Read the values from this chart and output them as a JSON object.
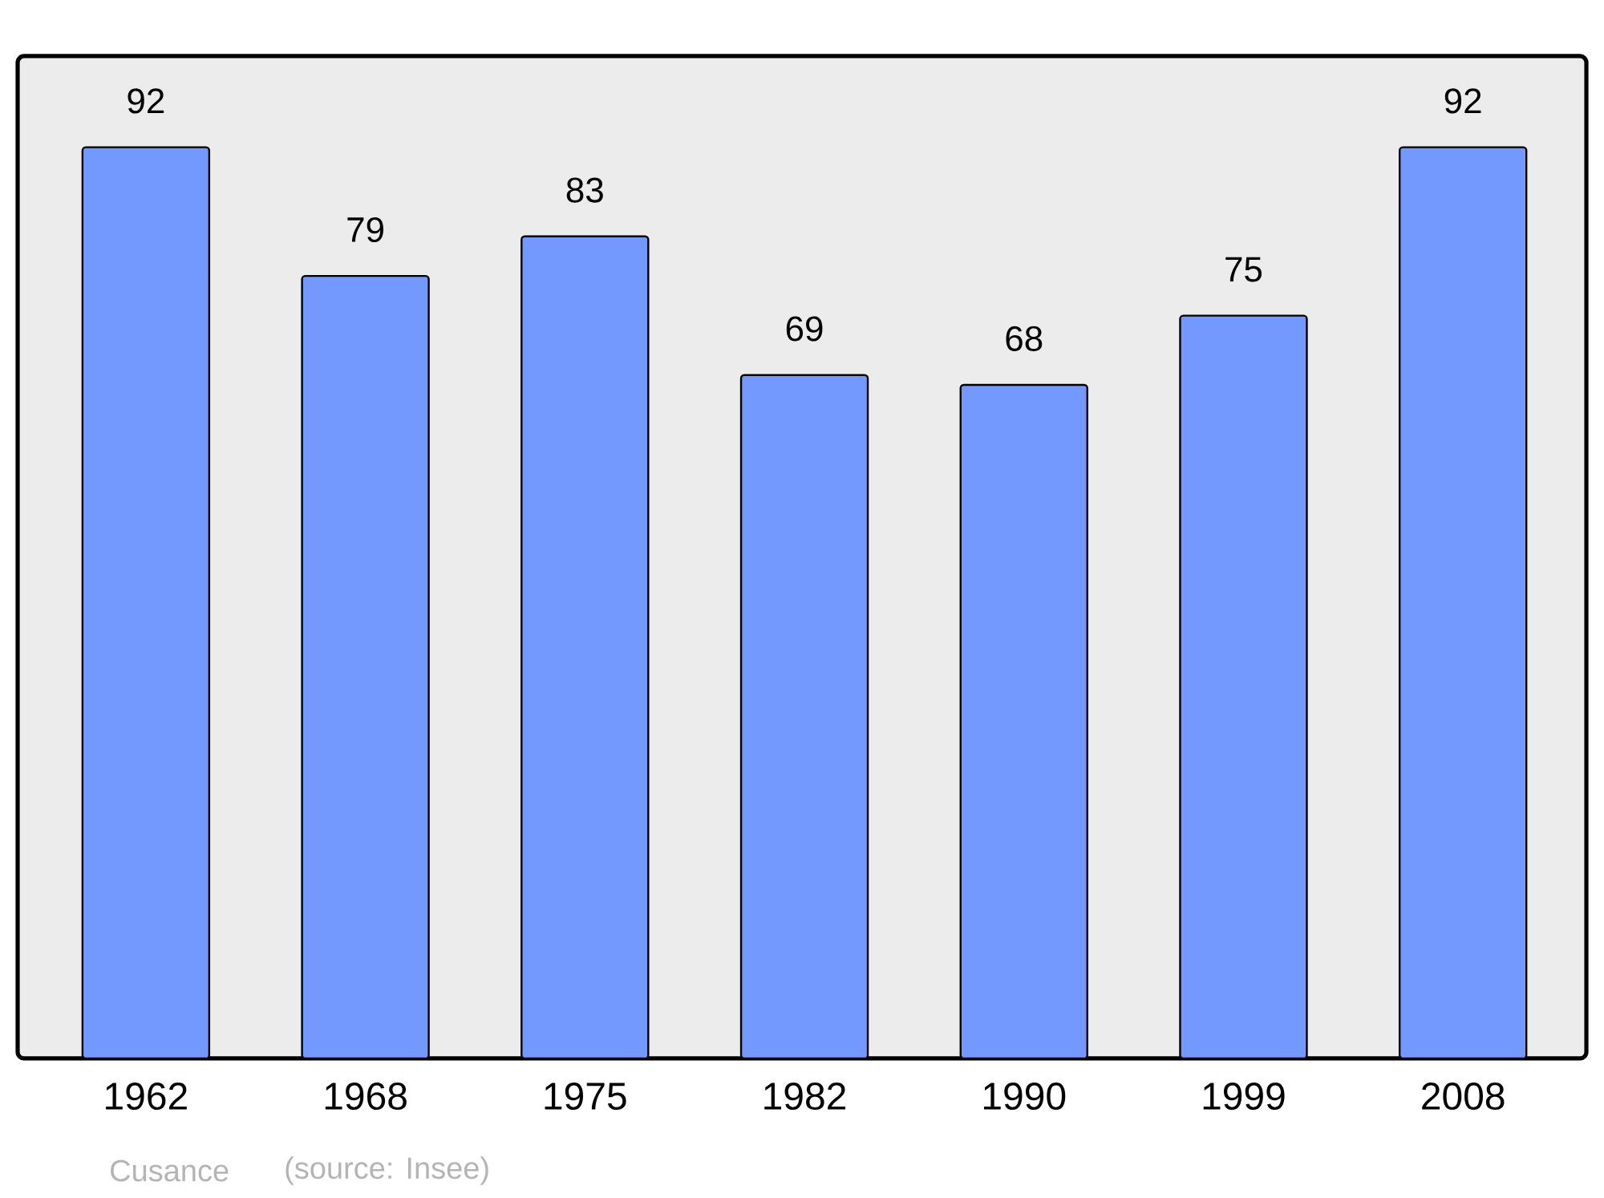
{
  "chart_data": {
    "type": "bar",
    "categories": [
      "1962",
      "1968",
      "1975",
      "1982",
      "1990",
      "1999",
      "2008"
    ],
    "values": [
      92,
      79,
      83,
      69,
      68,
      75,
      92
    ],
    "color": "#7399ff",
    "data_labels": true,
    "annotations": [
      "Cusance",
      "(source: Insee)"
    ]
  }
}
